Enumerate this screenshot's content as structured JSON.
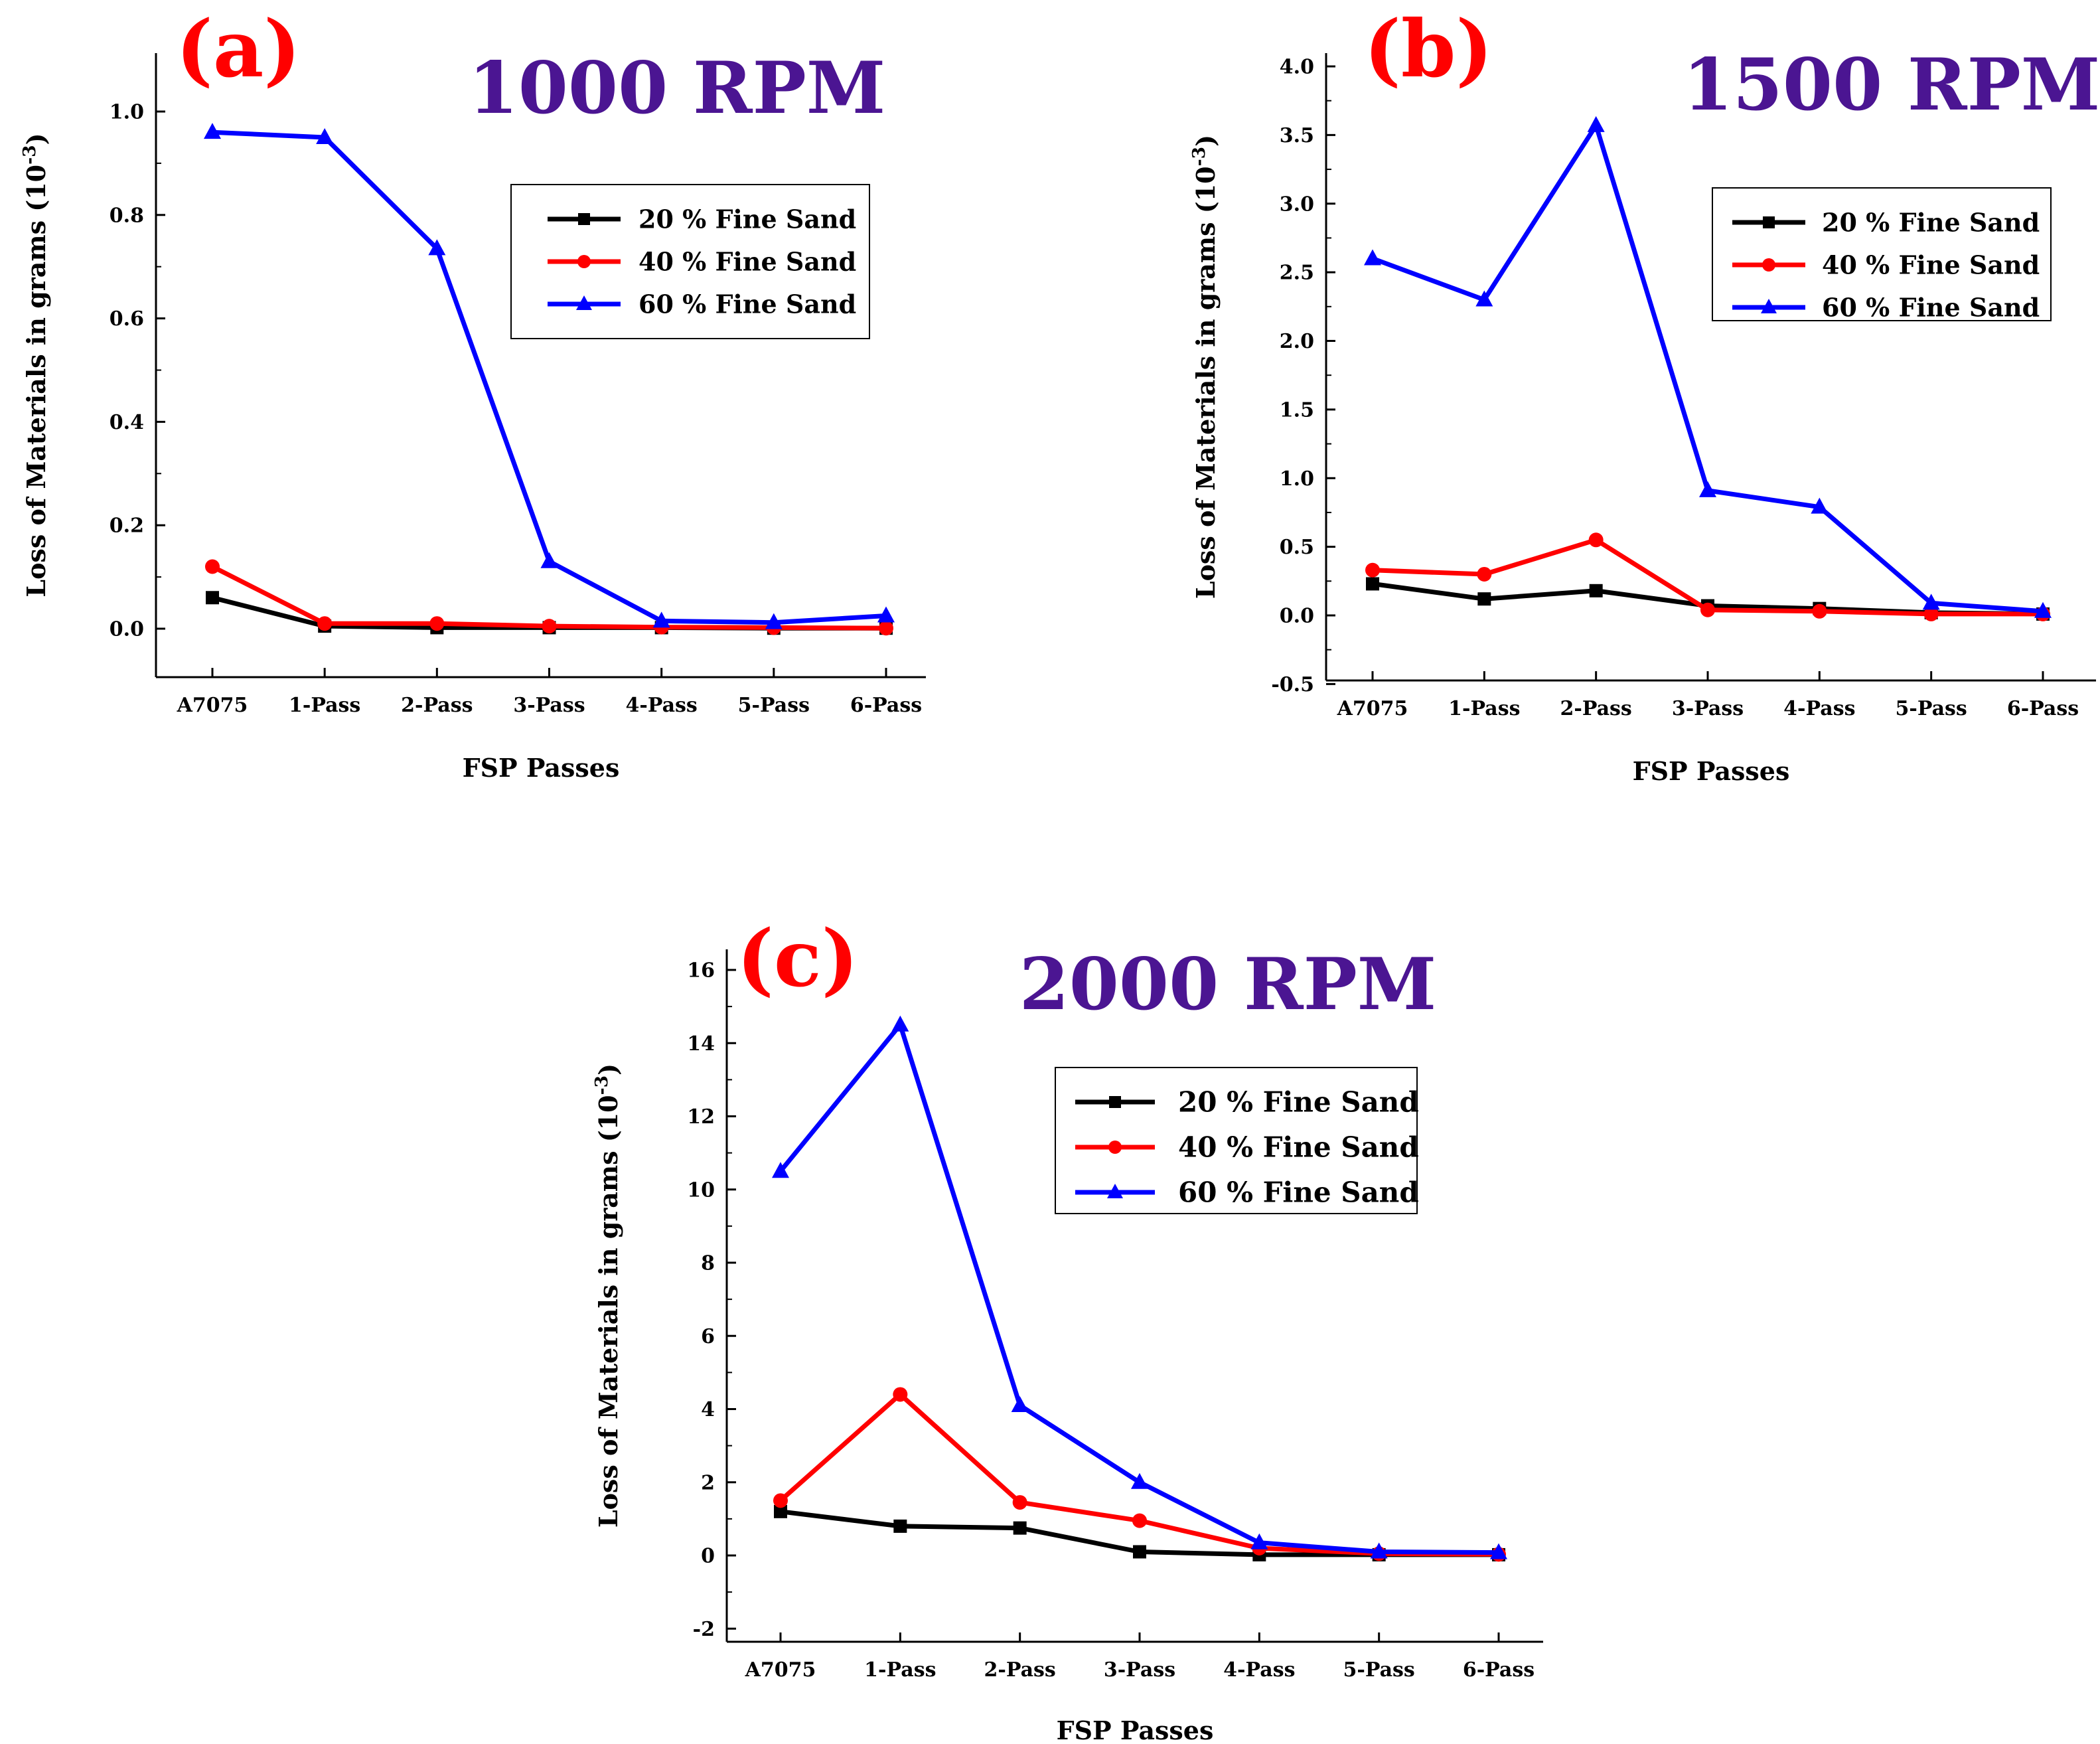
{
  "chart_data": [
    {
      "type": "line",
      "panel_label": "(a)",
      "title": "1000 RPM",
      "xlabel": "FSP Passes",
      "ylabel": "Loss of Materials in grams (10",
      "ylabel_exponent": "-3",
      "ylabel_close": ")",
      "categories": [
        "A7075",
        "1-Pass",
        "2-Pass",
        "3-Pass",
        "4-Pass",
        "5-Pass",
        "6-Pass"
      ],
      "ylim": [
        -0.1,
        1.1
      ],
      "yticks": [
        0.0,
        0.2,
        0.4,
        0.6,
        0.8,
        1.0
      ],
      "ytick_labels": [
        "0.0",
        "0.2",
        "0.4",
        "0.6",
        "0.8",
        "1.0"
      ],
      "legend_position": "center-right",
      "series": [
        {
          "name": "20 % Fine Sand",
          "color": "#000000",
          "marker": "square",
          "values": [
            0.06,
            0.005,
            0.002,
            0.002,
            0.002,
            0.001,
            0.001
          ]
        },
        {
          "name": "40 % Fine Sand",
          "color": "#ff0000",
          "marker": "circle",
          "values": [
            0.12,
            0.01,
            0.01,
            0.005,
            0.003,
            0.002,
            0.001
          ]
        },
        {
          "name": "60 % Fine Sand",
          "color": "#0000ff",
          "marker": "triangle",
          "values": [
            0.96,
            0.95,
            0.735,
            0.13,
            0.015,
            0.012,
            0.025
          ]
        }
      ]
    },
    {
      "type": "line",
      "panel_label": "(b)",
      "title": "1500 RPM",
      "xlabel": "FSP Passes",
      "ylabel": "Loss of Materials in grams (10",
      "ylabel_exponent": "-3",
      "ylabel_close": ")",
      "categories": [
        "A7075",
        "1-Pass",
        "2-Pass",
        "3-Pass",
        "4-Pass",
        "5-Pass",
        "6-Pass"
      ],
      "ylim": [
        -0.5,
        4.0
      ],
      "yticks": [
        -0.5,
        0.0,
        0.5,
        1.0,
        1.5,
        2.0,
        2.5,
        3.0,
        3.5,
        4.0
      ],
      "ytick_labels": [
        "-0.5",
        "0.0",
        "0.5",
        "1.0",
        "1.5",
        "2.0",
        "2.5",
        "3.0",
        "3.5",
        "4.0"
      ],
      "legend_position": "top-right",
      "series": [
        {
          "name": "20 % Fine Sand",
          "color": "#000000",
          "marker": "square",
          "values": [
            0.23,
            0.12,
            0.18,
            0.07,
            0.05,
            0.02,
            0.01
          ]
        },
        {
          "name": "40 % Fine Sand",
          "color": "#ff0000",
          "marker": "circle",
          "values": [
            0.33,
            0.3,
            0.55,
            0.04,
            0.03,
            0.01,
            0.01
          ]
        },
        {
          "name": "60 % Fine Sand",
          "color": "#0000ff",
          "marker": "triangle",
          "values": [
            2.6,
            2.3,
            3.57,
            0.91,
            0.79,
            0.09,
            0.03
          ]
        }
      ]
    },
    {
      "type": "line",
      "panel_label": "(c)",
      "title": "2000 RPM",
      "xlabel": "FSP Passes",
      "ylabel": "Loss of Materials in grams (10",
      "ylabel_exponent": "-3",
      "ylabel_close": ")",
      "categories": [
        "A7075",
        "1-Pass",
        "2-Pass",
        "3-Pass",
        "4-Pass",
        "5-Pass",
        "6-Pass"
      ],
      "ylim": [
        -2,
        16
      ],
      "yticks": [
        -2,
        0,
        2,
        4,
        6,
        8,
        10,
        12,
        14,
        16
      ],
      "ytick_labels": [
        "-2",
        "0",
        "2",
        "4",
        "6",
        "8",
        "10",
        "12",
        "14",
        "16"
      ],
      "legend_position": "top-right",
      "series": [
        {
          "name": "20 % Fine Sand",
          "color": "#000000",
          "marker": "square",
          "values": [
            1.2,
            0.8,
            0.75,
            0.1,
            0.02,
            0.02,
            0.02
          ]
        },
        {
          "name": "40 % Fine Sand",
          "color": "#ff0000",
          "marker": "circle",
          "values": [
            1.5,
            4.4,
            1.45,
            0.95,
            0.2,
            0.05,
            0.03
          ]
        },
        {
          "name": "60 % Fine Sand",
          "color": "#0000ff",
          "marker": "triangle",
          "values": [
            10.5,
            14.5,
            4.1,
            2.0,
            0.35,
            0.1,
            0.08
          ]
        }
      ]
    }
  ],
  "colors": {
    "panel_label": "#ff0000",
    "title": "#4b1592",
    "axis": "#000000"
  }
}
